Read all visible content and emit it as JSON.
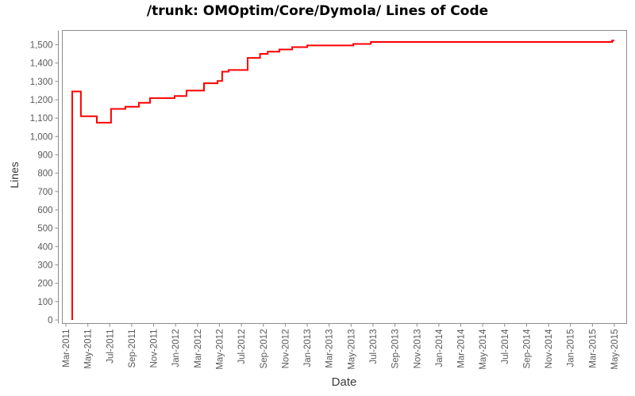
{
  "page": {
    "title": "/trunk: OMOptim/Core/Dymola/ Lines of Code"
  },
  "chart_data": {
    "type": "line",
    "subtype": "step-after",
    "title": "/trunk: OMOptim/Core/Dymola/ Lines of Code",
    "xlabel": "Date",
    "ylabel": "Lines",
    "legend": "none",
    "grid": "off",
    "line_color": "#fe0000",
    "axis_color": "#8c8c8c",
    "tick_label_color": "#595959",
    "background_color": "#ffffff",
    "x_axis_start": "Mar-2011",
    "x_axis_end": "May-2015",
    "x_tick_labels": [
      "Mar-2011",
      "May-2011",
      "Jul-2011",
      "Sep-2011",
      "Nov-2011",
      "Jan-2012",
      "Mar-2012",
      "May-2012",
      "Jul-2012",
      "Sep-2012",
      "Nov-2012",
      "Jan-2013",
      "Mar-2013",
      "May-2013",
      "Jul-2013",
      "Sep-2013",
      "Nov-2013",
      "Jan-2014",
      "Mar-2014",
      "May-2014",
      "Jul-2014",
      "Sep-2014",
      "Nov-2014",
      "Jan-2015",
      "Mar-2015",
      "May-2015"
    ],
    "y_tick_labels": [
      "0",
      "100",
      "200",
      "300",
      "400",
      "500",
      "600",
      "700",
      "800",
      "900",
      "1,000",
      "1,100",
      "1,200",
      "1,300",
      "1,400",
      "1,500"
    ],
    "y_ticks": [
      0,
      100,
      200,
      300,
      400,
      500,
      600,
      700,
      800,
      900,
      1000,
      1100,
      1200,
      1300,
      1400,
      1500
    ],
    "ylim": [
      0,
      1580
    ],
    "xlim_months": [
      -0.35,
      51.0
    ],
    "series": [
      {
        "name": "Lines of Code",
        "starts_from_zero": true,
        "points_note": "m = months after Mar-2011 tick, v = lines of code active from that date (step-after)",
        "points": [
          {
            "m": 0.58,
            "v": 1245
          },
          {
            "m": 1.37,
            "v": 1110
          },
          {
            "m": 2.82,
            "v": 1075
          },
          {
            "m": 4.12,
            "v": 1150
          },
          {
            "m": 5.43,
            "v": 1162
          },
          {
            "m": 6.66,
            "v": 1184
          },
          {
            "m": 7.67,
            "v": 1209
          },
          {
            "m": 9.91,
            "v": 1220
          },
          {
            "m": 11.0,
            "v": 1250
          },
          {
            "m": 12.59,
            "v": 1290
          },
          {
            "m": 13.82,
            "v": 1302
          },
          {
            "m": 14.25,
            "v": 1353
          },
          {
            "m": 14.83,
            "v": 1362
          },
          {
            "m": 16.57,
            "v": 1428
          },
          {
            "m": 17.7,
            "v": 1450
          },
          {
            "m": 18.4,
            "v": 1462
          },
          {
            "m": 19.46,
            "v": 1474
          },
          {
            "m": 20.62,
            "v": 1487
          },
          {
            "m": 22.0,
            "v": 1496
          },
          {
            "m": 26.2,
            "v": 1504
          },
          {
            "m": 27.8,
            "v": 1515
          },
          {
            "m": 49.8,
            "v": 1523
          },
          {
            "m": 50.0,
            "v": 1523
          }
        ]
      }
    ]
  }
}
